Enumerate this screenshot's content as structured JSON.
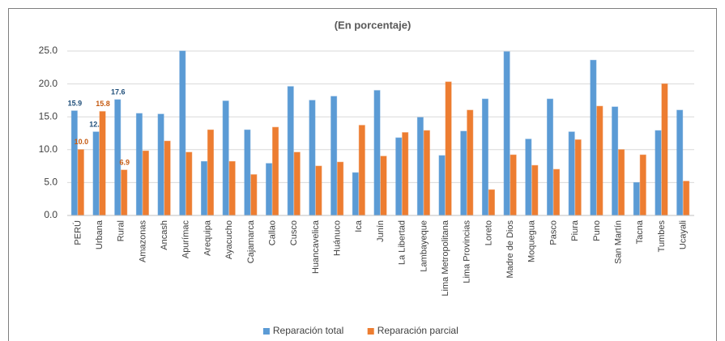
{
  "chart_data": {
    "type": "bar",
    "title": "(En porcentaje)",
    "categories": [
      "PERÚ",
      "Urbana",
      "Rural",
      "Amazonas",
      "Ancash",
      "Apurímac",
      "Arequipa",
      "Ayacucho",
      "Cajamarca",
      "Callao",
      "Cusco",
      "Huancavelica",
      "Huánuco",
      "Ica",
      "Junín",
      "La Libertad",
      "Lambayeque",
      "Lima Metropolitana",
      "Lima Provincias",
      "Loreto",
      "Madre de Dios",
      "Moquegua",
      "Pasco",
      "Piura",
      "Puno",
      "San Martín",
      "Tacna",
      "Tumbes",
      "Ucayali"
    ],
    "series": [
      {
        "name": "Reparación total",
        "color": "#5b9bd5",
        "values": [
          15.9,
          12.7,
          17.6,
          15.5,
          15.4,
          25.0,
          8.2,
          17.4,
          13.0,
          7.9,
          19.6,
          17.5,
          18.1,
          6.5,
          19.0,
          11.8,
          14.9,
          9.1,
          12.8,
          17.7,
          24.9,
          11.6,
          17.7,
          12.7,
          23.6,
          16.5,
          5.0,
          12.9,
          16.0
        ],
        "value_labels": [
          "15.9",
          "12.7",
          "17.6",
          null,
          null,
          null,
          null,
          null,
          null,
          null,
          null,
          null,
          null,
          null,
          null,
          null,
          null,
          null,
          null,
          null,
          null,
          null,
          null,
          null,
          null,
          null,
          null,
          null,
          null
        ],
        "label_color": "#1f4e79"
      },
      {
        "name": "Reparación parcial",
        "color": "#ed7d31",
        "values": [
          10.0,
          15.8,
          6.9,
          9.8,
          11.3,
          9.6,
          13.0,
          8.2,
          6.2,
          13.4,
          9.6,
          7.5,
          8.1,
          13.7,
          9.0,
          12.6,
          12.9,
          20.3,
          16.0,
          3.9,
          9.2,
          7.6,
          7.0,
          11.5,
          16.6,
          10.0,
          9.2,
          20.0,
          5.2
        ],
        "value_labels": [
          "10.0",
          "15.8",
          "6.9",
          null,
          null,
          null,
          null,
          null,
          null,
          null,
          null,
          null,
          null,
          null,
          null,
          null,
          null,
          null,
          null,
          null,
          null,
          null,
          null,
          null,
          null,
          null,
          null,
          null,
          null
        ],
        "label_color": "#c55a11"
      }
    ],
    "ylim": [
      0,
      25
    ],
    "yticks": [
      {
        "value": 0,
        "label": "0.0"
      },
      {
        "value": 5,
        "label": "5.0"
      },
      {
        "value": 10,
        "label": "10.0"
      },
      {
        "value": 15,
        "label": "15.0"
      },
      {
        "value": 20,
        "label": "20.0"
      },
      {
        "value": 25,
        "label": "25.0"
      }
    ],
    "grid": true,
    "legend": "bottom"
  }
}
